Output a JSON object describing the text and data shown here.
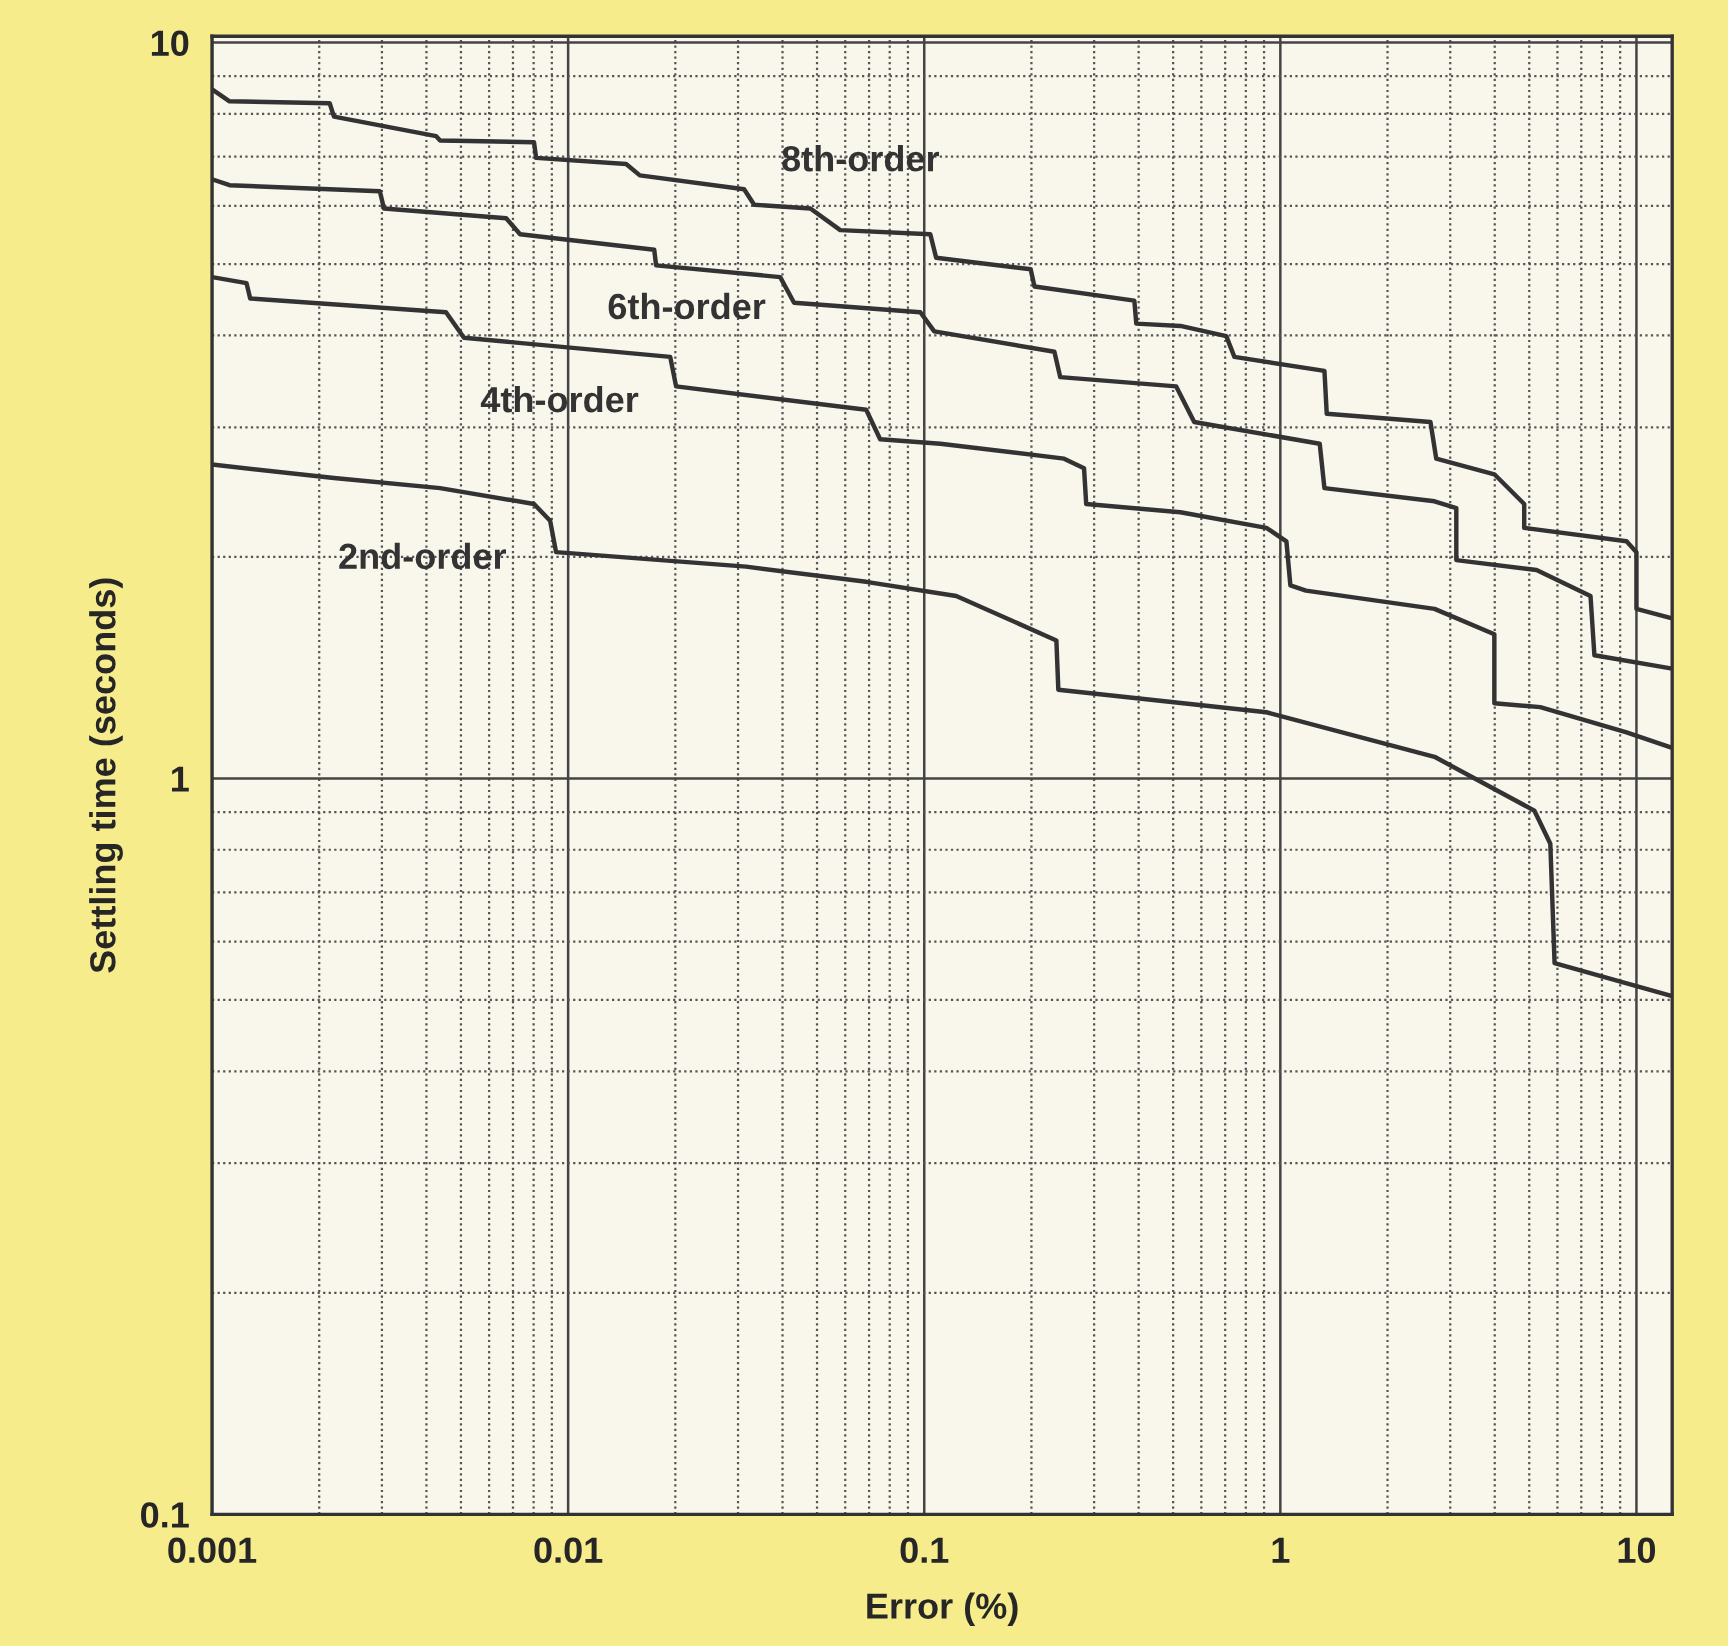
{
  "chart_data": {
    "type": "line",
    "xlabel": "Error (%)",
    "ylabel": "Settling time (seconds)",
    "log": "xy",
    "xlim": [
      0.001,
      12.6
    ],
    "ylim": [
      0.1,
      10.2
    ],
    "xticks": [
      0.001,
      0.01,
      0.1,
      1,
      10
    ],
    "yticks": [
      0.1,
      1,
      10
    ],
    "grid": true,
    "legend": false,
    "marker": "none",
    "line_style": "solid",
    "series": [
      {
        "name": "8th-order",
        "color": "#333333",
        "x": [
          0.001,
          0.00112,
          0.00214,
          0.0022,
          0.00426,
          0.00437,
          0.00802,
          0.00813,
          0.01455,
          0.0159,
          0.0312,
          0.0333,
          0.0479,
          0.0581,
          0.104,
          0.108,
          0.199,
          0.204,
          0.389,
          0.394,
          0.524,
          0.705,
          0.743,
          1.33,
          1.35,
          2.64,
          2.74,
          3.99,
          4.84,
          4.84,
          9.38,
          10,
          10,
          12.6
        ],
        "values": [
          8.64,
          8.32,
          8.27,
          7.93,
          7.46,
          7.36,
          7.32,
          6.97,
          6.84,
          6.6,
          6.32,
          6.02,
          5.95,
          5.56,
          5.49,
          5.1,
          4.92,
          4.66,
          4.46,
          4.15,
          4.12,
          3.99,
          3.74,
          3.58,
          3.13,
          3.05,
          2.72,
          2.59,
          2.36,
          2.19,
          2.1,
          2.03,
          1.7,
          1.65
        ]
      },
      {
        "name": "6th-order",
        "color": "#333333",
        "x": [
          0.001,
          0.00112,
          0.00296,
          0.00304,
          0.0067,
          0.00733,
          0.01745,
          0.01766,
          0.0394,
          0.0431,
          0.0975,
          0.1067,
          0.232,
          0.241,
          0.51,
          0.573,
          1.29,
          1.33,
          2.71,
          3.12,
          3.12,
          5.24,
          7.43,
          7.62,
          12.6
        ],
        "values": [
          6.52,
          6.4,
          6.28,
          5.95,
          5.77,
          5.49,
          5.23,
          4.98,
          4.8,
          4.43,
          4.3,
          4.05,
          3.8,
          3.51,
          3.41,
          3.05,
          2.85,
          2.48,
          2.38,
          2.33,
          1.98,
          1.92,
          1.77,
          1.47,
          1.41
        ]
      },
      {
        "name": "4th-order",
        "color": "#333333",
        "x": [
          0.001,
          0.00125,
          0.00128,
          0.00454,
          0.0051,
          0.01935,
          0.0201,
          0.0687,
          0.0752,
          0.111,
          0.247,
          0.281,
          0.285,
          0.524,
          0.914,
          1.04,
          1.067,
          1.18,
          2.71,
          3.99,
          3.99,
          5.37,
          9.38,
          12.6
        ],
        "values": [
          4.8,
          4.71,
          4.49,
          4.3,
          3.97,
          3.74,
          3.41,
          3.17,
          2.89,
          2.85,
          2.72,
          2.64,
          2.36,
          2.3,
          2.19,
          2.1,
          1.83,
          1.8,
          1.7,
          1.57,
          1.265,
          1.25,
          1.155,
          1.1
        ]
      },
      {
        "name": "2nd-order",
        "color": "#333333",
        "x": [
          0.001,
          0.0022,
          0.00437,
          0.00802,
          0.0089,
          0.00925,
          0.0316,
          0.0687,
          0.123,
          0.235,
          0.238,
          0.914,
          2.71,
          5.17,
          5.73,
          5.89,
          12.6
        ],
        "values": [
          2.67,
          2.56,
          2.48,
          2.36,
          2.24,
          2.03,
          1.94,
          1.85,
          1.77,
          1.54,
          1.32,
          1.23,
          1.07,
          0.904,
          0.815,
          0.561,
          0.506
        ]
      }
    ]
  }
}
